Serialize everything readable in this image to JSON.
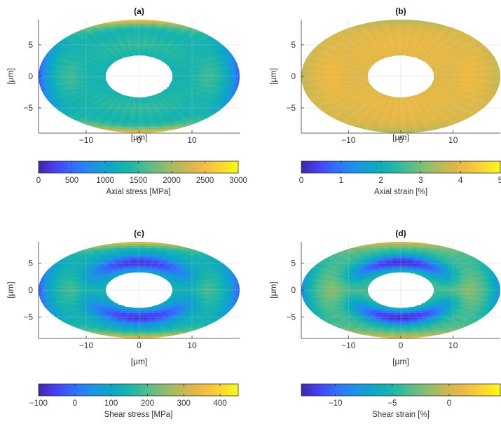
{
  "colormap": [
    "#3e26a8",
    "#4743f8",
    "#2f72fa",
    "#1d93e4",
    "#0ca7c6",
    "#1bb6a9",
    "#54bc8b",
    "#8fbd6c",
    "#c7b853",
    "#f0b944",
    "#fcd534",
    "#f9fb15"
  ],
  "chart_data": [
    {
      "type": "heatmap",
      "panel_label": "(a)",
      "shape": "elliptical annulus",
      "x_ticks": [
        -10,
        0,
        10
      ],
      "y_ticks": [
        5,
        0,
        -5
      ],
      "xlabel": "[μm]",
      "ylabel": "[μm]",
      "xlim": [
        -19,
        19
      ],
      "ylim": [
        -9,
        9
      ],
      "outer_semi_axes": [
        19,
        9
      ],
      "inner_semi_axes": [
        6.3,
        3.3
      ],
      "grid": true,
      "colorbar": {
        "label": "Axial stress [MPa]",
        "range": [
          0,
          3000
        ],
        "ticks": [
          0,
          500,
          1000,
          1500,
          2000,
          2500,
          3000
        ]
      },
      "field_description": "Mostly 1200–1500 MPa; high (~2800–3000 MPa) at top/bottom edges; low (~200 MPa) at left/right outer edges; slightly elevated bands near ±13 μm.",
      "field_profile": {
        "base": 0.43,
        "top_bottom": 0.52,
        "sides": -0.36,
        "ring": 0.06,
        "xband": 0.08
      }
    },
    {
      "type": "heatmap",
      "panel_label": "(b)",
      "shape": "elliptical annulus",
      "x_ticks": [
        -10,
        0,
        10
      ],
      "y_ticks": [
        5,
        0,
        -5
      ],
      "xlabel": "[μm]",
      "ylabel": "[μm]",
      "xlim": [
        -19,
        19
      ],
      "ylim": [
        -9,
        9
      ],
      "outer_semi_axes": [
        19,
        9
      ],
      "inner_semi_axes": [
        6.3,
        3.3
      ],
      "grid": true,
      "colorbar": {
        "label": "Axial strain [%]",
        "range": [
          0,
          5
        ],
        "ticks": [
          0,
          1,
          2,
          3,
          4,
          5
        ]
      },
      "field_description": "Mostly 3.6–4.0 %; slightly lower (~3 %) near top/bottom and outer sides.",
      "field_profile": {
        "base": 0.78,
        "top_bottom": -0.12,
        "sides": -0.08,
        "ring": 0.03,
        "xband": 0.04
      }
    },
    {
      "type": "heatmap",
      "panel_label": "(c)",
      "shape": "elliptical annulus",
      "x_ticks": [
        -10,
        0,
        10
      ],
      "y_ticks": [
        5,
        0,
        -5
      ],
      "xlabel": "[μm]",
      "ylabel": "[μm]",
      "xlim": [
        -19,
        19
      ],
      "ylim": [
        -9,
        9
      ],
      "outer_semi_axes": [
        19,
        9
      ],
      "inner_semi_axes": [
        6.3,
        3.3
      ],
      "grid": true,
      "colorbar": {
        "label": "Shear stress [MPa]",
        "range": [
          -100,
          450
        ],
        "ticks": [
          -100,
          0,
          100,
          200,
          300,
          400
        ]
      },
      "field_description": "Mostly 100–150 MPa; dark ring (~-50 MPa) around the inner hole above and below; high (~400 MPa) at top/bottom edges; low at outer sides.",
      "field_profile": {
        "base": 0.42,
        "top_bottom": 0.5,
        "sides": -0.34,
        "ring": -0.36,
        "xband": 0.1
      }
    },
    {
      "type": "heatmap",
      "panel_label": "(d)",
      "shape": "elliptical annulus",
      "x_ticks": [
        -10,
        0,
        10
      ],
      "y_ticks": [
        5,
        0,
        -5
      ],
      "xlabel": "[μm]",
      "ylabel": "[μm]",
      "xlim": [
        -19,
        19
      ],
      "ylim": [
        -9,
        9
      ],
      "outer_semi_axes": [
        19,
        9
      ],
      "inner_semi_axes": [
        6.3,
        3.3
      ],
      "grid": true,
      "colorbar": {
        "label": "Shear strain [%]",
        "range": [
          -13,
          4.5
        ],
        "ticks": [
          -10,
          -5,
          0
        ]
      },
      "field_description": "Mostly -3 to -1 %; dark ring (~-11 %) around the inner hole above and below; higher (~2 %) at top/bottom edges; lower at outer sides.",
      "field_profile": {
        "base": 0.52,
        "top_bottom": 0.33,
        "sides": -0.32,
        "ring": -0.48,
        "xband": 0.1
      }
    }
  ]
}
